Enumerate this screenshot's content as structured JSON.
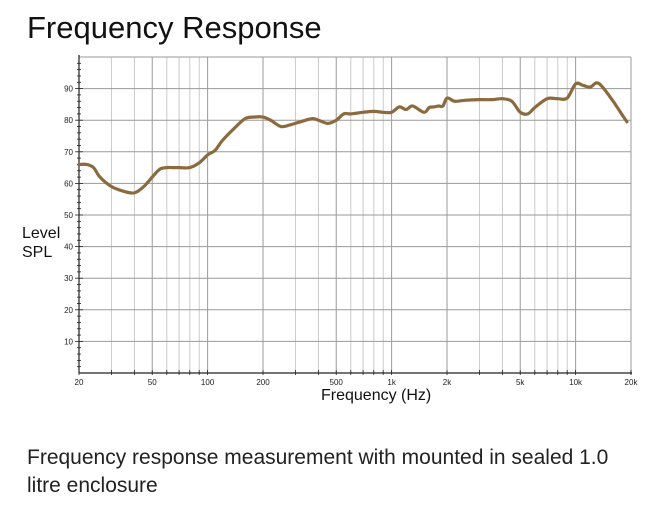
{
  "chart_data": {
    "type": "line",
    "title": "Frequency Response",
    "xlabel": "Frequency (Hz)",
    "ylabel": [
      "Level",
      "SPL"
    ],
    "x_scale": "log",
    "xlim": [
      20,
      20000
    ],
    "ylim": [
      0,
      100
    ],
    "grid": true,
    "x_ticks": [
      {
        "value": 20,
        "label": "20"
      },
      {
        "value": 50,
        "label": "50"
      },
      {
        "value": 100,
        "label": "100"
      },
      {
        "value": 200,
        "label": "200"
      },
      {
        "value": 500,
        "label": "500"
      },
      {
        "value": 1000,
        "label": "1k"
      },
      {
        "value": 2000,
        "label": "2k"
      },
      {
        "value": 5000,
        "label": "5k"
      },
      {
        "value": 10000,
        "label": "10k"
      },
      {
        "value": 20000,
        "label": "20k"
      }
    ],
    "y_ticks": [
      10,
      20,
      30,
      40,
      50,
      60,
      70,
      80,
      90
    ],
    "series": [
      {
        "color": "#8b6a3e",
        "x": [
          20,
          22,
          24,
          26,
          30,
          35,
          40,
          45,
          50,
          55,
          60,
          65,
          70,
          80,
          90,
          100,
          110,
          120,
          140,
          160,
          180,
          200,
          220,
          250,
          280,
          320,
          370,
          400,
          450,
          500,
          550,
          600,
          700,
          800,
          900,
          1000,
          1100,
          1200,
          1300,
          1500,
          1600,
          1700,
          1800,
          1900,
          2000,
          2200,
          2500,
          3000,
          3500,
          4000,
          4500,
          5000,
          5500,
          6000,
          7000,
          8000,
          9000,
          10000,
          11000,
          12000,
          13000,
          14000,
          16000,
          18000,
          19000
        ],
        "y": [
          66,
          66,
          65,
          62,
          59,
          57.5,
          57,
          59,
          62,
          64.5,
          65,
          65,
          65,
          65,
          66.5,
          69,
          70.5,
          73.5,
          77.5,
          80.5,
          81,
          81,
          80,
          78,
          78.5,
          79.5,
          80.5,
          80,
          79,
          80,
          82,
          82,
          82.5,
          82.8,
          82.5,
          82.5,
          84.2,
          83.4,
          84.5,
          82.5,
          84,
          84.2,
          84.5,
          84.5,
          87,
          86,
          86.3,
          86.5,
          86.5,
          86.8,
          86,
          82.5,
          82,
          84,
          86.8,
          86.8,
          87,
          91.5,
          91,
          90.5,
          91.8,
          90.5,
          86,
          81.5,
          79.5
        ]
      }
    ]
  },
  "caption": "Frequency response measurement with mounted in sealed 1.0 litre enclosure"
}
